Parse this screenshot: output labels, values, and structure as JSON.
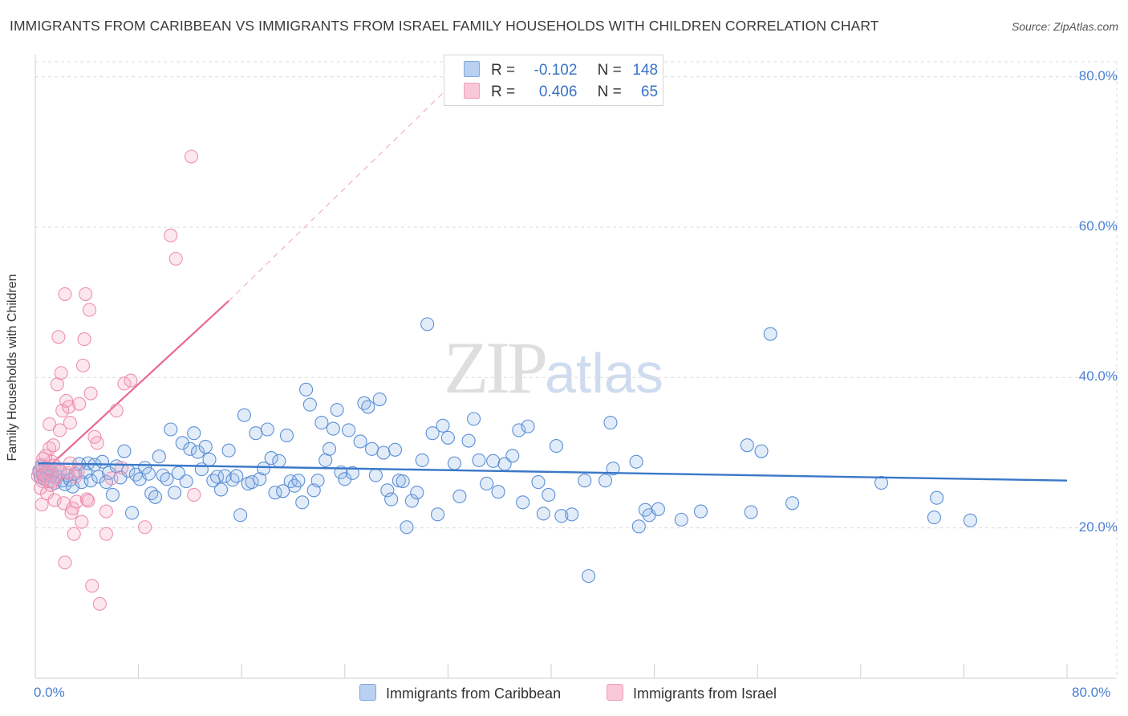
{
  "header": {
    "title": "IMMIGRANTS FROM CARIBBEAN VS IMMIGRANTS FROM ISRAEL FAMILY HOUSEHOLDS WITH CHILDREN CORRELATION CHART",
    "source": "Source: ZipAtlas.com"
  },
  "watermark": {
    "zip": "ZIP",
    "atlas": "atlas"
  },
  "legend": {
    "rows": [
      {
        "r_label": "R =",
        "r_value": "-0.102",
        "n_label": "N =",
        "n_value": "148"
      },
      {
        "r_label": "R =",
        "r_value": "0.406",
        "n_label": "N =",
        "n_value": "65"
      }
    ]
  },
  "chart_data": {
    "type": "scatter",
    "title": "IMMIGRANTS FROM CARIBBEAN VS IMMIGRANTS FROM ISRAEL FAMILY HOUSEHOLDS WITH CHILDREN CORRELATION CHART",
    "xlabel": "",
    "ylabel": "Family Households with Children",
    "xlim": [
      0,
      80
    ],
    "ylim": [
      0,
      82
    ],
    "x_tick_labels": [
      "0.0%",
      "80.0%"
    ],
    "y_ticks": [
      20,
      40,
      60,
      80
    ],
    "y_tick_labels": [
      "20.0%",
      "40.0%",
      "60.0%",
      "80.0%"
    ],
    "grid": true,
    "legend_position": "top-center",
    "colors": {
      "caribbean": "#5b8fd6",
      "israel": "#ee8fb0",
      "caribbean_line": "#3a78c8",
      "israel_line": "#e8679a"
    },
    "series": [
      {
        "name": "Immigrants from Caribbean",
        "r": -0.102,
        "n": 148,
        "trend": {
          "x": [
            0.2,
            80
          ],
          "y": [
            28.6,
            26.3
          ]
        },
        "points": [
          [
            0.3,
            27.6
          ],
          [
            0.4,
            26.8
          ],
          [
            0.5,
            28.2
          ],
          [
            0.6,
            27.1
          ],
          [
            0.7,
            26.5
          ],
          [
            0.8,
            28.0
          ],
          [
            0.9,
            27.3
          ],
          [
            1.0,
            26.2
          ],
          [
            1.1,
            27.8
          ],
          [
            1.2,
            26.9
          ],
          [
            1.3,
            27.4
          ],
          [
            1.5,
            26.0
          ],
          [
            1.7,
            26.8
          ],
          [
            1.9,
            27.5
          ],
          [
            2.1,
            26.3
          ],
          [
            2.3,
            25.8
          ],
          [
            2.5,
            27.0
          ],
          [
            2.7,
            26.4
          ],
          [
            2.9,
            25.5
          ],
          [
            3.1,
            27.2
          ],
          [
            3.4,
            28.5
          ],
          [
            3.6,
            26.1
          ],
          [
            3.9,
            27.4
          ],
          [
            4.1,
            28.6
          ],
          [
            4.3,
            26.3
          ],
          [
            4.6,
            28.4
          ],
          [
            4.9,
            26.8
          ],
          [
            5.2,
            28.8
          ],
          [
            5.5,
            26.1
          ],
          [
            5.7,
            27.3
          ],
          [
            6.0,
            24.4
          ],
          [
            6.3,
            28.2
          ],
          [
            6.6,
            26.7
          ],
          [
            6.9,
            30.2
          ],
          [
            7.2,
            27.6
          ],
          [
            7.5,
            22.0
          ],
          [
            7.8,
            27.1
          ],
          [
            8.1,
            26.5
          ],
          [
            8.5,
            28.0
          ],
          [
            8.8,
            27.2
          ],
          [
            9.0,
            24.6
          ],
          [
            9.3,
            24.1
          ],
          [
            9.6,
            29.5
          ],
          [
            9.9,
            27.0
          ],
          [
            10.2,
            26.5
          ],
          [
            10.5,
            33.1
          ],
          [
            10.8,
            24.7
          ],
          [
            11.1,
            27.3
          ],
          [
            11.4,
            31.3
          ],
          [
            11.7,
            26.2
          ],
          [
            12.0,
            30.5
          ],
          [
            12.3,
            32.6
          ],
          [
            12.6,
            30.1
          ],
          [
            12.9,
            27.8
          ],
          [
            13.2,
            30.8
          ],
          [
            13.5,
            29.1
          ],
          [
            13.8,
            26.3
          ],
          [
            14.1,
            26.8
          ],
          [
            14.4,
            25.1
          ],
          [
            14.7,
            26.9
          ],
          [
            15.0,
            30.3
          ],
          [
            15.3,
            26.4
          ],
          [
            15.6,
            26.9
          ],
          [
            15.9,
            21.7
          ],
          [
            16.2,
            35.0
          ],
          [
            16.5,
            25.9
          ],
          [
            16.8,
            26.1
          ],
          [
            17.1,
            32.6
          ],
          [
            17.4,
            26.5
          ],
          [
            17.7,
            27.9
          ],
          [
            18.0,
            33.1
          ],
          [
            18.3,
            29.3
          ],
          [
            18.6,
            24.7
          ],
          [
            18.9,
            28.9
          ],
          [
            19.2,
            24.9
          ],
          [
            19.5,
            32.3
          ],
          [
            19.8,
            26.2
          ],
          [
            20.1,
            25.6
          ],
          [
            20.4,
            26.3
          ],
          [
            20.7,
            23.4
          ],
          [
            21.0,
            38.4
          ],
          [
            21.3,
            36.4
          ],
          [
            21.6,
            25.0
          ],
          [
            21.9,
            26.3
          ],
          [
            22.2,
            34.0
          ],
          [
            22.5,
            29.0
          ],
          [
            22.8,
            30.5
          ],
          [
            23.1,
            33.2
          ],
          [
            23.4,
            35.7
          ],
          [
            23.7,
            27.4
          ],
          [
            24.0,
            26.5
          ],
          [
            24.3,
            33.0
          ],
          [
            24.6,
            27.3
          ],
          [
            25.2,
            31.5
          ],
          [
            25.5,
            36.6
          ],
          [
            25.8,
            36.1
          ],
          [
            26.1,
            30.5
          ],
          [
            26.4,
            27.0
          ],
          [
            26.7,
            37.1
          ],
          [
            27.0,
            30.0
          ],
          [
            27.3,
            25.0
          ],
          [
            27.6,
            23.8
          ],
          [
            27.9,
            30.4
          ],
          [
            28.2,
            26.3
          ],
          [
            28.5,
            26.2
          ],
          [
            28.8,
            20.1
          ],
          [
            29.2,
            23.6
          ],
          [
            29.6,
            24.7
          ],
          [
            30.0,
            29.0
          ],
          [
            30.4,
            47.1
          ],
          [
            30.8,
            32.6
          ],
          [
            31.2,
            21.8
          ],
          [
            31.6,
            33.6
          ],
          [
            32.0,
            32.0
          ],
          [
            32.5,
            28.6
          ],
          [
            32.9,
            24.2
          ],
          [
            33.6,
            31.6
          ],
          [
            34.0,
            34.5
          ],
          [
            34.4,
            29.0
          ],
          [
            35.0,
            25.9
          ],
          [
            35.5,
            28.9
          ],
          [
            35.9,
            24.8
          ],
          [
            36.4,
            28.5
          ],
          [
            37.0,
            29.6
          ],
          [
            37.5,
            33.0
          ],
          [
            37.8,
            23.4
          ],
          [
            38.2,
            33.5
          ],
          [
            39.0,
            26.1
          ],
          [
            39.4,
            21.9
          ],
          [
            39.8,
            24.4
          ],
          [
            40.4,
            30.9
          ],
          [
            40.8,
            21.6
          ],
          [
            41.6,
            21.8
          ],
          [
            42.6,
            26.3
          ],
          [
            42.9,
            13.6
          ],
          [
            44.2,
            26.3
          ],
          [
            44.6,
            34.0
          ],
          [
            44.8,
            27.9
          ],
          [
            46.6,
            28.8
          ],
          [
            46.8,
            20.2
          ],
          [
            47.3,
            22.4
          ],
          [
            47.6,
            21.7
          ],
          [
            48.3,
            22.5
          ],
          [
            50.1,
            21.1
          ],
          [
            51.6,
            22.2
          ],
          [
            55.2,
            31.0
          ],
          [
            55.5,
            22.1
          ],
          [
            56.3,
            30.2
          ],
          [
            57.0,
            45.8
          ],
          [
            58.7,
            23.3
          ],
          [
            65.6,
            26.0
          ],
          [
            69.7,
            21.4
          ],
          [
            69.9,
            24.0
          ],
          [
            72.5,
            21.0
          ]
        ]
      },
      {
        "name": "Immigrants from Israel",
        "r": 0.406,
        "n": 65,
        "trend": {
          "x": [
            0.2,
            15
          ],
          "y": [
            26.8,
            50.2
          ],
          "dashed_x": [
            15,
            32
          ],
          "dashed_y": [
            50.2,
            78.5
          ]
        },
        "points": [
          [
            0.2,
            26.9
          ],
          [
            0.3,
            27.4
          ],
          [
            0.4,
            25.3
          ],
          [
            0.5,
            28.4
          ],
          [
            0.5,
            23.1
          ],
          [
            0.6,
            26.2
          ],
          [
            0.7,
            27.1
          ],
          [
            0.8,
            29.6
          ],
          [
            0.9,
            24.6
          ],
          [
            1.0,
            27.9
          ],
          [
            1.1,
            33.8
          ],
          [
            1.1,
            30.6
          ],
          [
            1.2,
            25.7
          ],
          [
            1.3,
            28.8
          ],
          [
            1.4,
            31.0
          ],
          [
            1.5,
            28.3
          ],
          [
            1.5,
            23.7
          ],
          [
            1.6,
            26.6
          ],
          [
            1.7,
            39.1
          ],
          [
            1.8,
            45.4
          ],
          [
            1.9,
            27.5
          ],
          [
            1.9,
            33.0
          ],
          [
            2.0,
            40.6
          ],
          [
            2.1,
            35.6
          ],
          [
            2.2,
            23.3
          ],
          [
            2.3,
            51.1
          ],
          [
            2.3,
            15.4
          ],
          [
            2.4,
            36.9
          ],
          [
            2.5,
            27.3
          ],
          [
            2.6,
            36.1
          ],
          [
            2.7,
            34.0
          ],
          [
            2.8,
            22.0
          ],
          [
            2.9,
            22.6
          ],
          [
            3.0,
            19.2
          ],
          [
            3.1,
            26.8
          ],
          [
            3.2,
            23.5
          ],
          [
            3.3,
            27.5
          ],
          [
            3.4,
            36.5
          ],
          [
            3.6,
            20.8
          ],
          [
            3.7,
            41.6
          ],
          [
            3.8,
            45.1
          ],
          [
            3.9,
            51.1
          ],
          [
            4.0,
            23.8
          ],
          [
            4.1,
            23.6
          ],
          [
            4.2,
            49.0
          ],
          [
            4.3,
            37.9
          ],
          [
            4.4,
            12.3
          ],
          [
            4.6,
            32.1
          ],
          [
            4.8,
            31.3
          ],
          [
            5.0,
            9.9
          ],
          [
            5.5,
            22.2
          ],
          [
            5.5,
            19.2
          ],
          [
            5.9,
            26.6
          ],
          [
            6.3,
            35.6
          ],
          [
            6.7,
            28.0
          ],
          [
            6.9,
            39.2
          ],
          [
            7.4,
            39.6
          ],
          [
            8.5,
            20.1
          ],
          [
            10.5,
            58.9
          ],
          [
            10.9,
            55.8
          ],
          [
            12.1,
            69.4
          ],
          [
            12.3,
            24.4
          ],
          [
            1.3,
            26.2
          ],
          [
            0.6,
            29.2
          ],
          [
            2.7,
            28.6
          ]
        ]
      }
    ]
  },
  "bottom_legend": {
    "caribbean_label": "Immigrants from Caribbean",
    "israel_label": "Immigrants from Israel"
  }
}
